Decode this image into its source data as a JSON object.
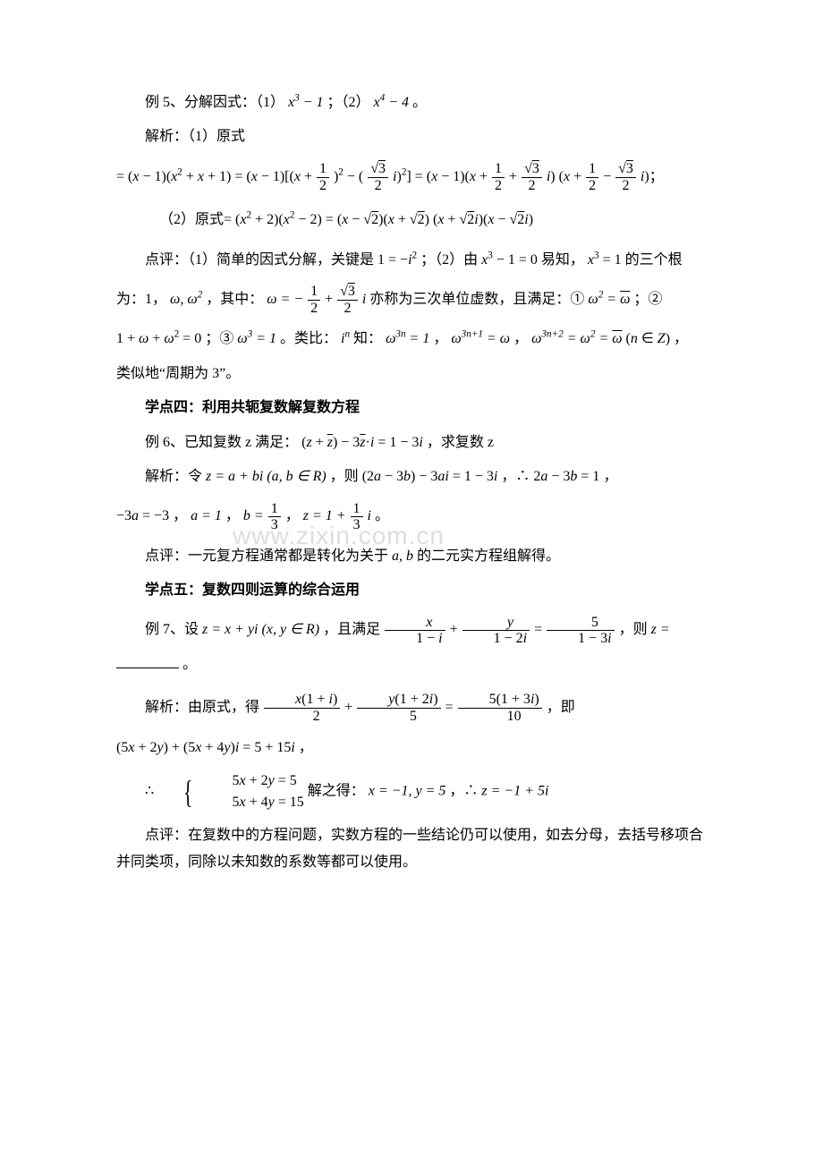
{
  "watermark": "www.zixin.com.cn",
  "ex5": {
    "title_prefix": "例 5、分解因式：（1）",
    "expr1": "x³ − 1",
    "sep": "；（2）",
    "expr2": "x⁴ − 4",
    "end": "。"
  },
  "ex5_sol_label": "解析：（1）原式",
  "ex5_sol_line1_a": "= (x − 1)(x² + x + 1) = (x − 1)[(x + ",
  "ex5_sol_line1_b": ")² − (",
  "ex5_sol_line1_c": "i)²] = (x − 1)(x + ",
  "ex5_sol_line1_d": " + ",
  "ex5_sol_line1_e": "i) (x + ",
  "ex5_sol_line1_f": " − ",
  "ex5_sol_line1_g": "i)",
  "ex5_sol2_prefix": "（2）原式= ",
  "ex5_sol2_expr": "(x² + 2)(x² − 2) = (x − √2)(x + √2) (x + √2 i)(x − √2 i)",
  "ex5_comment_a": "点评：（1）简单的因式分解，关键是 ",
  "ex5_comment_b": "1 = −i²",
  "ex5_comment_c": "；（2）由 ",
  "ex5_comment_d": "x³ − 1 = 0",
  "ex5_comment_e": " 易知，",
  "ex5_comment_f": "x³ = 1",
  "ex5_comment_g": "的三个根",
  "ex5_roots_a": "为：1，",
  "ex5_roots_b": "ω, ω²",
  "ex5_roots_c": "，其中：",
  "ex5_roots_d": "ω = − ",
  "ex5_roots_e": " + ",
  "ex5_roots_f": "i",
  "ex5_roots_g": " 亦称为三次单位虚数，且满足：① ",
  "ex5_roots_h": "ω² = ",
  "ex5_roots_i": "；②",
  "ex5_line3_a": "1 + ω + ω² = 0",
  "ex5_line3_b": "；③ ",
  "ex5_line3_c": "ω³ = 1",
  "ex5_line3_d": "。类比：",
  "ex5_line3_e": "iⁿ",
  "ex5_line3_f": " 知：",
  "ex5_line3_g": "ω³ⁿ = 1",
  "ex5_line3_h": "，",
  "ex5_line3_i": "ω³ⁿ⁺¹ = ω",
  "ex5_line3_j": "，",
  "ex5_line3_k": "ω³ⁿ⁺² = ω² = ",
  "ex5_line3_l": " (n ∈ Z)",
  "ex5_line3_m": "，",
  "ex5_period": "类似地“周期为 3”。",
  "sec4_title": "学点四：利用共轭复数解复数方程",
  "ex6_q_a": "例 6、已知复数 z 满足：",
  "ex6_q_b": "(z + z̄) − 3z̄·i = 1 − 3i",
  "ex6_q_c": "，求复数 z",
  "ex6_sol_a": "解析：令 ",
  "ex6_sol_b": "z = a + bi (a, b ∈ R)",
  "ex6_sol_c": "，则 ",
  "ex6_sol_d": "(2a − 3b) − 3ai = 1 − 3i",
  "ex6_sol_e": "，∴ ",
  "ex6_sol_f": "2a − 3b = 1",
  "ex6_sol_g": "，",
  "ex6_line2_a": "−3a = −3",
  "ex6_line2_b": "，",
  "ex6_line2_c": "a = 1",
  "ex6_line2_d": "，",
  "ex6_line2_e": "b = ",
  "ex6_line2_f": "，",
  "ex6_line2_g": "z = 1 + ",
  "ex6_line2_h": "i",
  "ex6_line2_i": "。",
  "ex6_comment": "点评：一元复方程通常都是转化为关于 a, b 的二元实方程组解得。",
  "sec5_title": "学点五：复数四则运算的综合运用",
  "ex7_q_a": "例 7、设 ",
  "ex7_q_b": "z = x + yi (x, y ∈ R)",
  "ex7_q_c": "，且满足 ",
  "ex7_q_d": " + ",
  "ex7_q_e": " = ",
  "ex7_q_f": "，则 ",
  "ex7_q_g": "z = ",
  "ex7_q_h": "。",
  "ex7_sol_a": "解析：由原式，得 ",
  "ex7_sol_b": " + ",
  "ex7_sol_c": " = ",
  "ex7_sol_d": "，即",
  "ex7_line2": "(5x + 2y) + (5x + 4y)i = 5 + 15i",
  "ex7_line2_end": "，",
  "ex7_cases_a": "∴ ",
  "ex7_case1": "5x + 2y = 5",
  "ex7_case2": "5x + 4y = 15",
  "ex7_cases_b": " 解之得：",
  "ex7_cases_c": "x = −1, y = 5",
  "ex7_cases_d": "，∴ ",
  "ex7_cases_e": "z = −1 + 5i",
  "ex7_comment": "点评：在复数中的方程问题，实数方程的一些结论仍可以使用，如去分母，去括号移项合并同类项，同除以未知数的系数等都可以使用。",
  "frac_half_num": "1",
  "frac_half_den": "2",
  "frac_r3_2_num": "√3",
  "frac_r3_2_den": "2",
  "frac_1_3_num": "1",
  "frac_1_3_den": "3",
  "frac_x_num": "x",
  "frac_x_den": "1 − i",
  "frac_y_num": "y",
  "frac_y_den": "1 − 2i",
  "frac_5_num": "5",
  "frac_5_den": "1 − 3i",
  "frac_x1i_num": "x(1 + i)",
  "frac_x1i_den": "2",
  "frac_y12i_num": "y(1 + 2i)",
  "frac_y12i_den": "5",
  "frac_513i_num": "5(1 + 3i)",
  "frac_513i_den": "10"
}
